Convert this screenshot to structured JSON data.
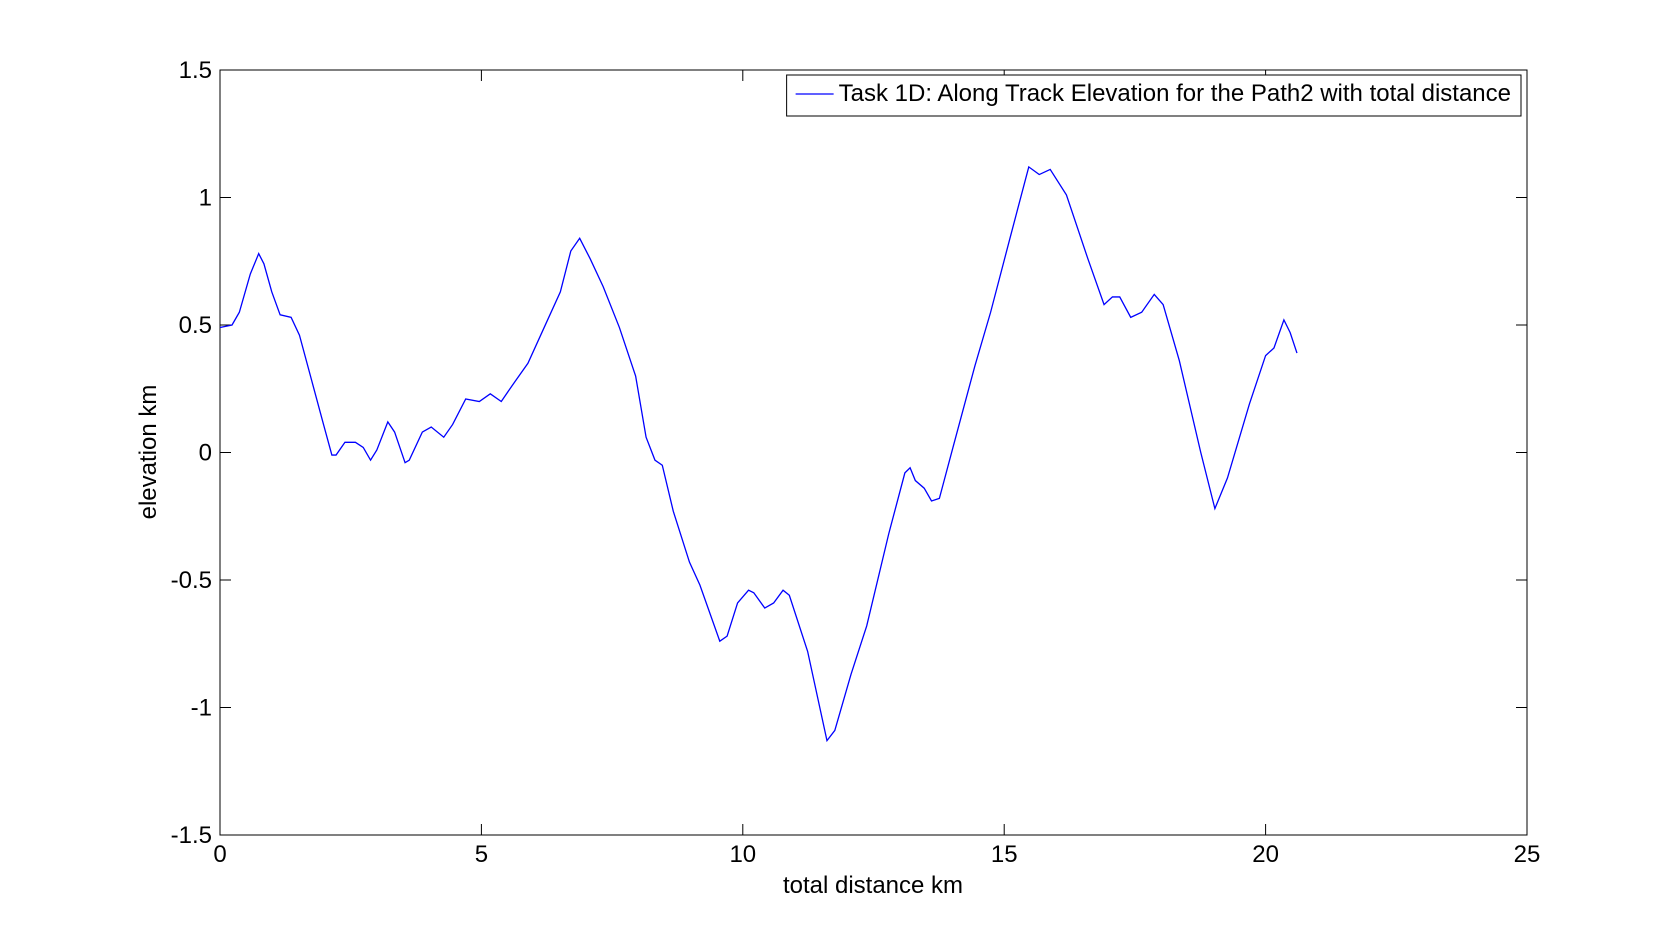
{
  "chart_data": {
    "type": "line",
    "xlabel": "total distance km",
    "ylabel": "elevation km",
    "xlim": [
      0,
      25
    ],
    "xticks": [
      0,
      5,
      10,
      15,
      20,
      25
    ],
    "ylim": [
      -1.5,
      1.5
    ],
    "yticks": [
      -1.5,
      -1,
      -0.5,
      0,
      0.5,
      1,
      1.5
    ],
    "legend": "upper right",
    "grid": false,
    "series": [
      {
        "name": "Task 1D: Along Track Elevation for the Path2 with total distance",
        "color": "#0000ff",
        "x": [
          0,
          0.23,
          0.37,
          0.58,
          0.74,
          0.84,
          0.99,
          1.15,
          1.36,
          1.52,
          1.77,
          1.98,
          2.14,
          2.22,
          2.39,
          2.59,
          2.74,
          2.88,
          3.0,
          3.21,
          3.34,
          3.54,
          3.62,
          3.87,
          4.04,
          4.28,
          4.45,
          4.7,
          4.96,
          5.17,
          5.38,
          5.58,
          5.89,
          6.2,
          6.51,
          6.71,
          6.88,
          7.08,
          7.33,
          7.64,
          7.95,
          8.15,
          8.32,
          8.46,
          8.67,
          8.98,
          9.18,
          9.56,
          9.7,
          9.9,
          10.11,
          10.21,
          10.42,
          10.59,
          10.77,
          10.89,
          11.24,
          11.61,
          11.76,
          12.07,
          12.37,
          12.79,
          13.1,
          13.2,
          13.3,
          13.47,
          13.61,
          13.76,
          14.02,
          14.44,
          14.74,
          15.11,
          15.47,
          15.67,
          15.88,
          16.19,
          16.6,
          16.91,
          17.07,
          17.21,
          17.42,
          17.63,
          17.87,
          18.04,
          18.35,
          18.76,
          19.03,
          19.27,
          19.69,
          20.0,
          20.16,
          20.35,
          20.47,
          20.6
        ],
        "values": [
          0.49,
          0.5,
          0.55,
          0.7,
          0.78,
          0.74,
          0.63,
          0.54,
          0.53,
          0.46,
          0.27,
          0.11,
          -0.01,
          -0.01,
          0.04,
          0.04,
          0.02,
          -0.03,
          0.01,
          0.12,
          0.08,
          -0.04,
          -0.03,
          0.08,
          0.1,
          0.06,
          0.11,
          0.21,
          0.2,
          0.23,
          0.2,
          0.26,
          0.35,
          0.49,
          0.63,
          0.79,
          0.84,
          0.76,
          0.65,
          0.49,
          0.3,
          0.06,
          -0.03,
          -0.05,
          -0.23,
          -0.43,
          -0.52,
          -0.74,
          -0.72,
          -0.59,
          -0.54,
          -0.55,
          -0.61,
          -0.59,
          -0.54,
          -0.56,
          -0.78,
          -1.13,
          -1.09,
          -0.87,
          -0.68,
          -0.32,
          -0.08,
          -0.06,
          -0.11,
          -0.14,
          -0.19,
          -0.18,
          0.02,
          0.34,
          0.55,
          0.84,
          1.12,
          1.09,
          1.11,
          1.01,
          0.76,
          0.58,
          0.61,
          0.61,
          0.53,
          0.55,
          0.62,
          0.58,
          0.36,
          0.0,
          -0.22,
          -0.1,
          0.19,
          0.38,
          0.41,
          0.52,
          0.47,
          0.39
        ]
      }
    ]
  }
}
